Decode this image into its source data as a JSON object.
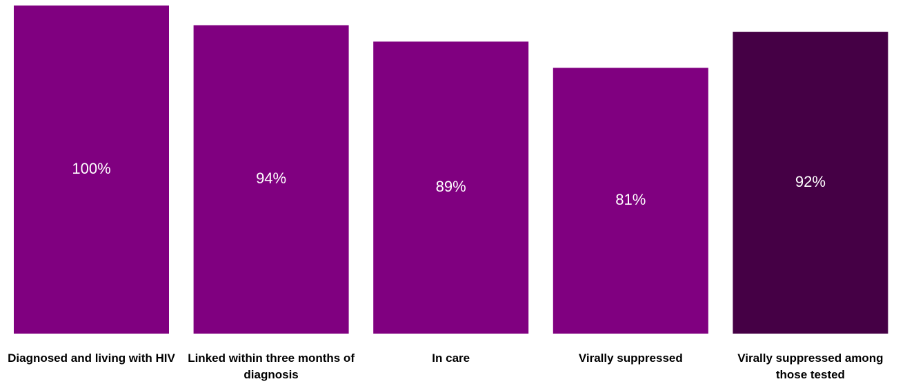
{
  "chart_data": {
    "type": "bar",
    "categories": [
      "Diagnosed and living with HIV",
      "Linked within three months of diagnosis",
      "In care",
      "Virally suppressed",
      "Virally suppressed among those tested"
    ],
    "values": [
      100,
      94,
      89,
      81,
      92
    ],
    "value_labels": [
      "100%",
      "94%",
      "89%",
      "81%",
      "92%"
    ],
    "colors": [
      "#800080",
      "#800080",
      "#800080",
      "#800080",
      "#450045"
    ]
  }
}
